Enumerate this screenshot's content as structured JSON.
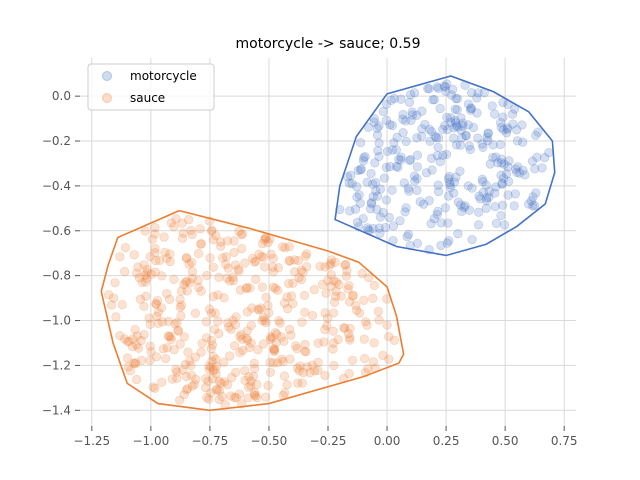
{
  "chart_data": {
    "type": "scatter",
    "title": "motorcycle -> sauce; 0.59",
    "xlabel": "",
    "ylabel": "",
    "xlim": [
      -1.3,
      0.8
    ],
    "ylim": [
      -1.47,
      0.17
    ],
    "x_ticks": [
      -1.25,
      -1.0,
      -0.75,
      -0.5,
      -0.25,
      0.0,
      0.25,
      0.5,
      0.75
    ],
    "x_tick_labels": [
      "−1.25",
      "−1.00",
      "−0.75",
      "−0.50",
      "−0.25",
      "0.00",
      "0.25",
      "0.50",
      "0.75"
    ],
    "y_ticks": [
      0.0,
      -0.2,
      -0.4,
      -0.6,
      -0.8,
      -1.0,
      -1.2,
      -1.4
    ],
    "y_tick_labels": [
      "0.0",
      "−0.2",
      "−0.4",
      "−0.6",
      "−0.8",
      "−1.0",
      "−1.2",
      "−1.4"
    ],
    "grid": true,
    "legend_position": "top-left",
    "series": [
      {
        "name": "motorcycle",
        "color": "#4472c4",
        "cluster": {
          "center": [
            0.26,
            -0.36
          ],
          "spread": [
            0.18,
            0.16
          ],
          "count": 300,
          "seed": 7
        },
        "hull": [
          [
            0.0,
            0.01
          ],
          [
            0.27,
            0.09
          ],
          [
            0.45,
            0.02
          ],
          [
            0.6,
            -0.07
          ],
          [
            0.7,
            -0.2
          ],
          [
            0.71,
            -0.34
          ],
          [
            0.67,
            -0.48
          ],
          [
            0.55,
            -0.58
          ],
          [
            0.42,
            -0.66
          ],
          [
            0.25,
            -0.71
          ],
          [
            0.04,
            -0.67
          ],
          [
            -0.22,
            -0.55
          ],
          [
            -0.2,
            -0.4
          ],
          [
            -0.13,
            -0.18
          ],
          [
            0.0,
            0.01
          ]
        ]
      },
      {
        "name": "sauce",
        "color": "#ed7d31",
        "cluster": {
          "center": [
            -0.52,
            -1.0
          ],
          "spread": [
            0.27,
            0.18
          ],
          "count": 450,
          "seed": 13
        },
        "hull": [
          [
            -0.88,
            -0.51
          ],
          [
            -0.58,
            -0.59
          ],
          [
            -0.25,
            -0.69
          ],
          [
            -0.12,
            -0.74
          ],
          [
            0.0,
            -0.85
          ],
          [
            0.04,
            -0.98
          ],
          [
            0.07,
            -1.15
          ],
          [
            0.05,
            -1.19
          ],
          [
            -0.1,
            -1.25
          ],
          [
            -0.5,
            -1.37
          ],
          [
            -0.75,
            -1.4
          ],
          [
            -0.97,
            -1.37
          ],
          [
            -1.1,
            -1.28
          ],
          [
            -1.16,
            -1.1
          ],
          [
            -1.21,
            -0.87
          ],
          [
            -1.18,
            -0.75
          ],
          [
            -1.14,
            -0.63
          ],
          [
            -0.88,
            -0.51
          ]
        ]
      }
    ]
  }
}
